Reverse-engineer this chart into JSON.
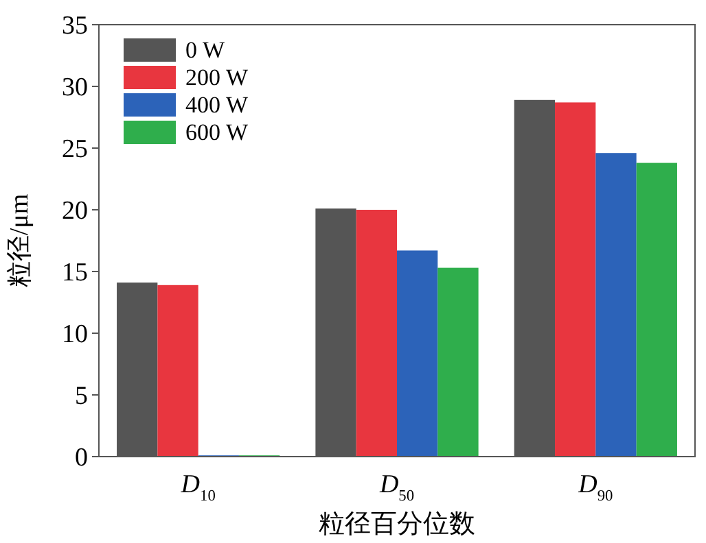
{
  "chart_data": {
    "type": "bar",
    "xlabel": "粒径百分位数",
    "ylabel": "粒径/μm",
    "categories": [
      "D$_{10}$",
      "D$_{50}$",
      "D$_{90}$"
    ],
    "series": [
      {
        "name": "0 W",
        "color": "#555555",
        "values": [
          14.1,
          20.1,
          28.9
        ]
      },
      {
        "name": "200 W",
        "color": "#e8363f",
        "values": [
          13.9,
          20.0,
          28.7
        ]
      },
      {
        "name": "400 W",
        "color": "#2c63b9",
        "values": [
          0.1,
          16.7,
          24.6
        ]
      },
      {
        "name": "600 W",
        "color": "#2fae4c",
        "values": [
          0.1,
          15.3,
          23.8
        ]
      }
    ],
    "ylim": [
      0,
      35
    ],
    "yticks": [
      0,
      5,
      10,
      15,
      20,
      25,
      30,
      35
    ],
    "legend": "top left",
    "grid": false
  }
}
